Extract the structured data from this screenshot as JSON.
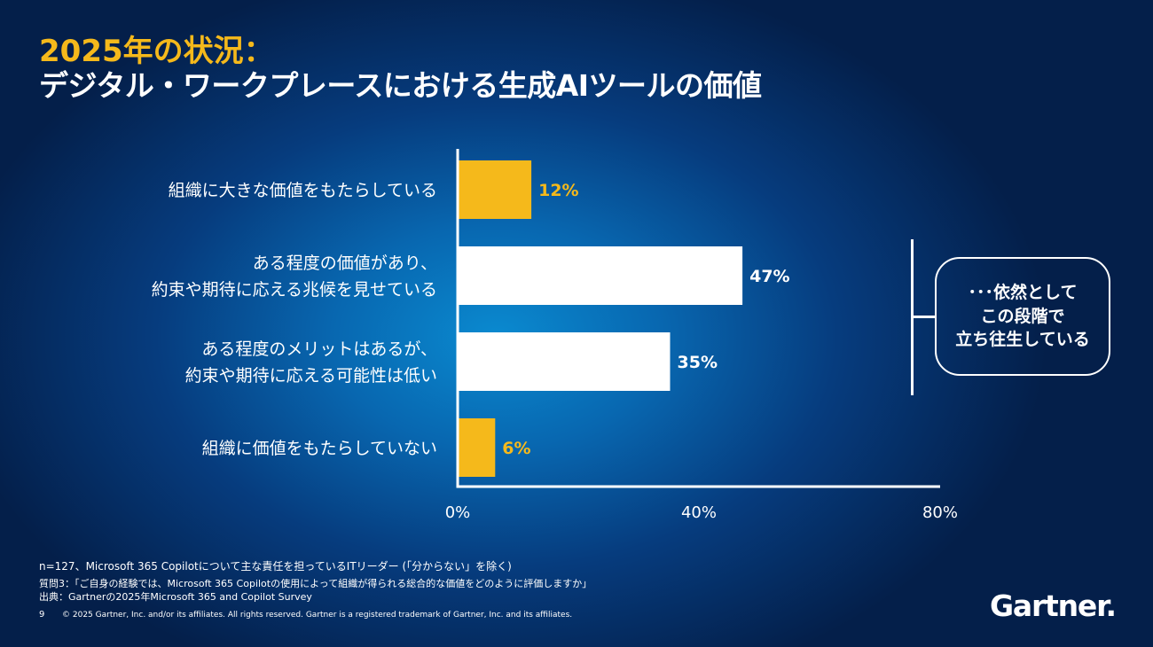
{
  "title": {
    "line1": "2025年の状況：",
    "line2": "デジタル・ワークプレースにおける生成AIツールの価値"
  },
  "chart_data": {
    "type": "bar",
    "orientation": "horizontal",
    "categories": [
      [
        "組織に大きな価値をもたらしている"
      ],
      [
        "ある程度の価値があり、",
        "約束や期待に応える兆候を見せている"
      ],
      [
        "ある程度のメリットはあるが、",
        "約束や期待に応える可能性は低い"
      ],
      [
        "組織に価値をもたらしていない"
      ]
    ],
    "values": [
      12,
      47,
      35,
      6
    ],
    "value_labels": [
      "12%",
      "47%",
      "35%",
      "6%"
    ],
    "bar_colors": [
      "#f5b91b",
      "#ffffff",
      "#ffffff",
      "#f5b91b"
    ],
    "xlim": [
      0,
      80
    ],
    "xticks": [
      0,
      40,
      80
    ],
    "xtick_labels": [
      "0%",
      "40%",
      "80%"
    ],
    "grid": false
  },
  "callout": {
    "lines": [
      "･･･依然として",
      "この段階で",
      "立ち往生している"
    ]
  },
  "footnotes": {
    "sample": "n=127、Microsoft 365 Copilotについて主な責任を担っているITリーダー (「分からない」を除く)",
    "question": "質問3：「ご自身の経験では、Microsoft 365 Copilotの使用によって組織が得られる総合的な価値をどのように評価しますか」",
    "source": "出典：Gartnerの2025年Microsoft 365 and Copilot Survey"
  },
  "footer": {
    "page_number": "9",
    "copyright": "© 2025 Gartner, Inc. and/or its affiliates. All rights reserved. Gartner is a registered trademark of Gartner, Inc. and its affiliates.",
    "logo_text": "Gartner."
  },
  "colors": {
    "accent": "#f5b91b",
    "text": "#ffffff"
  }
}
